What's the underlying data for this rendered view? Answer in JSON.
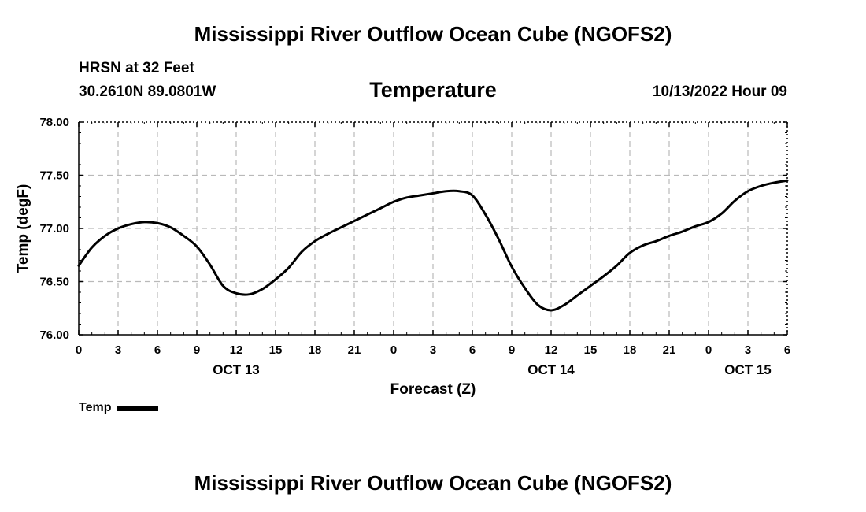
{
  "header": {
    "title": "Mississippi River Outflow Ocean Cube (NGOFS2)",
    "station": "HRSN at 32 Feet",
    "coords": "30.2610N  89.0801W",
    "chart_title": "Temperature",
    "datetime": "10/13/2022 Hour 09"
  },
  "footer": {
    "title": "Mississippi River Outflow Ocean Cube (NGOFS2)"
  },
  "legend": {
    "label": "Temp",
    "color": "#000000"
  },
  "chart_data": {
    "type": "line",
    "title": "Temperature",
    "xlabel": "Forecast (Z)",
    "ylabel": "Temp (degF)",
    "xlim": [
      0,
      54
    ],
    "ylim": [
      76.0,
      78.0
    ],
    "grid": true,
    "x_ticks": [
      0,
      3,
      6,
      9,
      12,
      15,
      18,
      21,
      24,
      27,
      30,
      33,
      36,
      39,
      42,
      45,
      48,
      51,
      54
    ],
    "x_tick_labels": [
      "0",
      "3",
      "6",
      "9",
      "12",
      "15",
      "18",
      "21",
      "0",
      "3",
      "6",
      "9",
      "12",
      "15",
      "18",
      "21",
      "0",
      "3",
      "6"
    ],
    "y_ticks": [
      76.0,
      76.5,
      77.0,
      77.5,
      78.0
    ],
    "y_tick_labels": [
      "76.00",
      "76.50",
      "77.00",
      "77.50",
      "78.00"
    ],
    "day_labels": [
      {
        "x": 12,
        "label": "OCT 13"
      },
      {
        "x": 36,
        "label": "OCT 14"
      },
      {
        "x": 51,
        "label": "OCT 15"
      }
    ],
    "series": [
      {
        "name": "Temp",
        "color": "#000000",
        "x": [
          0,
          1,
          2,
          3,
          4,
          5,
          6,
          7,
          8,
          9,
          10,
          11,
          12,
          13,
          14,
          15,
          16,
          17,
          18,
          19,
          20,
          21,
          22,
          23,
          24,
          25,
          26,
          27,
          28,
          29,
          30,
          31,
          32,
          33,
          34,
          35,
          36,
          37,
          38,
          39,
          40,
          41,
          42,
          43,
          44,
          45,
          46,
          47,
          48,
          49,
          50,
          51,
          52,
          53,
          54
        ],
        "values": [
          76.65,
          76.82,
          76.93,
          77.0,
          77.04,
          77.06,
          77.05,
          77.01,
          76.93,
          76.83,
          76.66,
          76.46,
          76.39,
          76.38,
          76.43,
          76.52,
          76.63,
          76.78,
          76.88,
          76.95,
          77.01,
          77.07,
          77.13,
          77.19,
          77.25,
          77.29,
          77.31,
          77.33,
          77.35,
          77.35,
          77.31,
          77.13,
          76.9,
          76.64,
          76.44,
          76.28,
          76.23,
          76.28,
          76.37,
          76.46,
          76.55,
          76.65,
          76.77,
          76.84,
          76.88,
          76.93,
          76.97,
          77.02,
          77.06,
          77.14,
          77.26,
          77.35,
          77.4,
          77.43,
          77.45
        ]
      }
    ]
  }
}
